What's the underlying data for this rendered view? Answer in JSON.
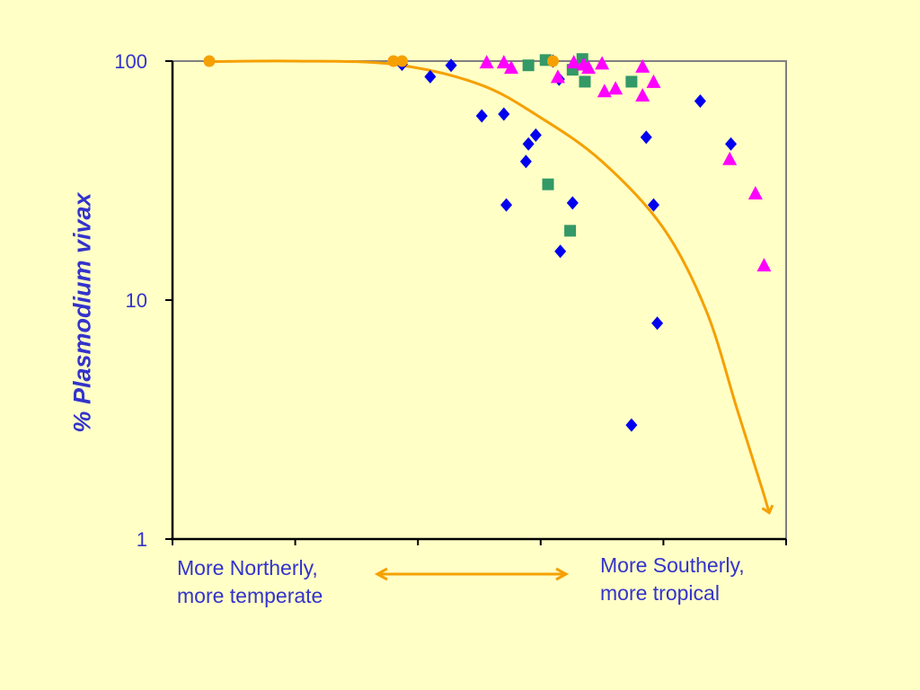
{
  "chart_data": {
    "type": "scatter",
    "title": "",
    "xlabel": "",
    "ylabel": "% Plasmodium vivax",
    "yscale": "log",
    "ylim": [
      1,
      100
    ],
    "yticks": [
      "1",
      "10",
      "100"
    ],
    "xlim": [
      0,
      5
    ],
    "xtick_count": 6,
    "x_annotation_left": [
      "More Northerly,",
      "more temperate"
    ],
    "x_annotation_right": [
      "More Southerly,",
      "more tropical"
    ],
    "grid": false,
    "legend": "none",
    "series": [
      {
        "marker": "circle",
        "color": "#F5A000",
        "points": [
          [
            0.3,
            100
          ],
          [
            1.8,
            100
          ],
          [
            1.87,
            100
          ],
          [
            3.1,
            100
          ]
        ]
      },
      {
        "marker": "diamond",
        "color": "#0000EE",
        "points": [
          [
            1.87,
            97
          ],
          [
            2.1,
            86
          ],
          [
            2.27,
            96
          ],
          [
            2.52,
            59
          ],
          [
            2.7,
            60
          ],
          [
            2.72,
            25
          ],
          [
            2.88,
            38
          ],
          [
            2.9,
            45
          ],
          [
            2.96,
            49
          ],
          [
            3.1,
            100
          ],
          [
            3.15,
            84
          ],
          [
            3.16,
            16
          ],
          [
            3.26,
            25.5
          ],
          [
            3.74,
            3
          ],
          [
            3.86,
            48
          ],
          [
            3.92,
            25
          ],
          [
            3.95,
            8
          ],
          [
            4.3,
            68
          ],
          [
            4.55,
            45
          ]
        ]
      },
      {
        "marker": "square",
        "color": "#339966",
        "points": [
          [
            2.9,
            96
          ],
          [
            3.04,
            101
          ],
          [
            3.06,
            30.5
          ],
          [
            3.24,
            19.5
          ],
          [
            3.26,
            92
          ],
          [
            3.34,
            102
          ],
          [
            3.36,
            82
          ],
          [
            3.74,
            82
          ]
        ]
      },
      {
        "marker": "triangle",
        "color": "#FF00FF",
        "points": [
          [
            2.56,
            99
          ],
          [
            2.7,
            99
          ],
          [
            2.76,
            94
          ],
          [
            3.14,
            86
          ],
          [
            3.27,
            99
          ],
          [
            3.35,
            97
          ],
          [
            3.39,
            94
          ],
          [
            3.5,
            98
          ],
          [
            3.52,
            75
          ],
          [
            3.61,
            77
          ],
          [
            3.83,
            95
          ],
          [
            3.83,
            72
          ],
          [
            3.92,
            82
          ],
          [
            4.54,
            39
          ],
          [
            4.75,
            28
          ],
          [
            4.82,
            14
          ]
        ]
      }
    ],
    "trend_line": {
      "color": "#F5A000",
      "points": [
        [
          0.3,
          99.5
        ],
        [
          1.0,
          100
        ],
        [
          1.8,
          97
        ],
        [
          2.5,
          80
        ],
        [
          3.0,
          58
        ],
        [
          3.5,
          38
        ],
        [
          4.0,
          20
        ],
        [
          4.35,
          9
        ],
        [
          4.6,
          3.5
        ],
        [
          4.8,
          1.65
        ],
        [
          4.86,
          1.3
        ]
      ]
    },
    "range_arrow": {
      "color": "#F5A000"
    }
  }
}
